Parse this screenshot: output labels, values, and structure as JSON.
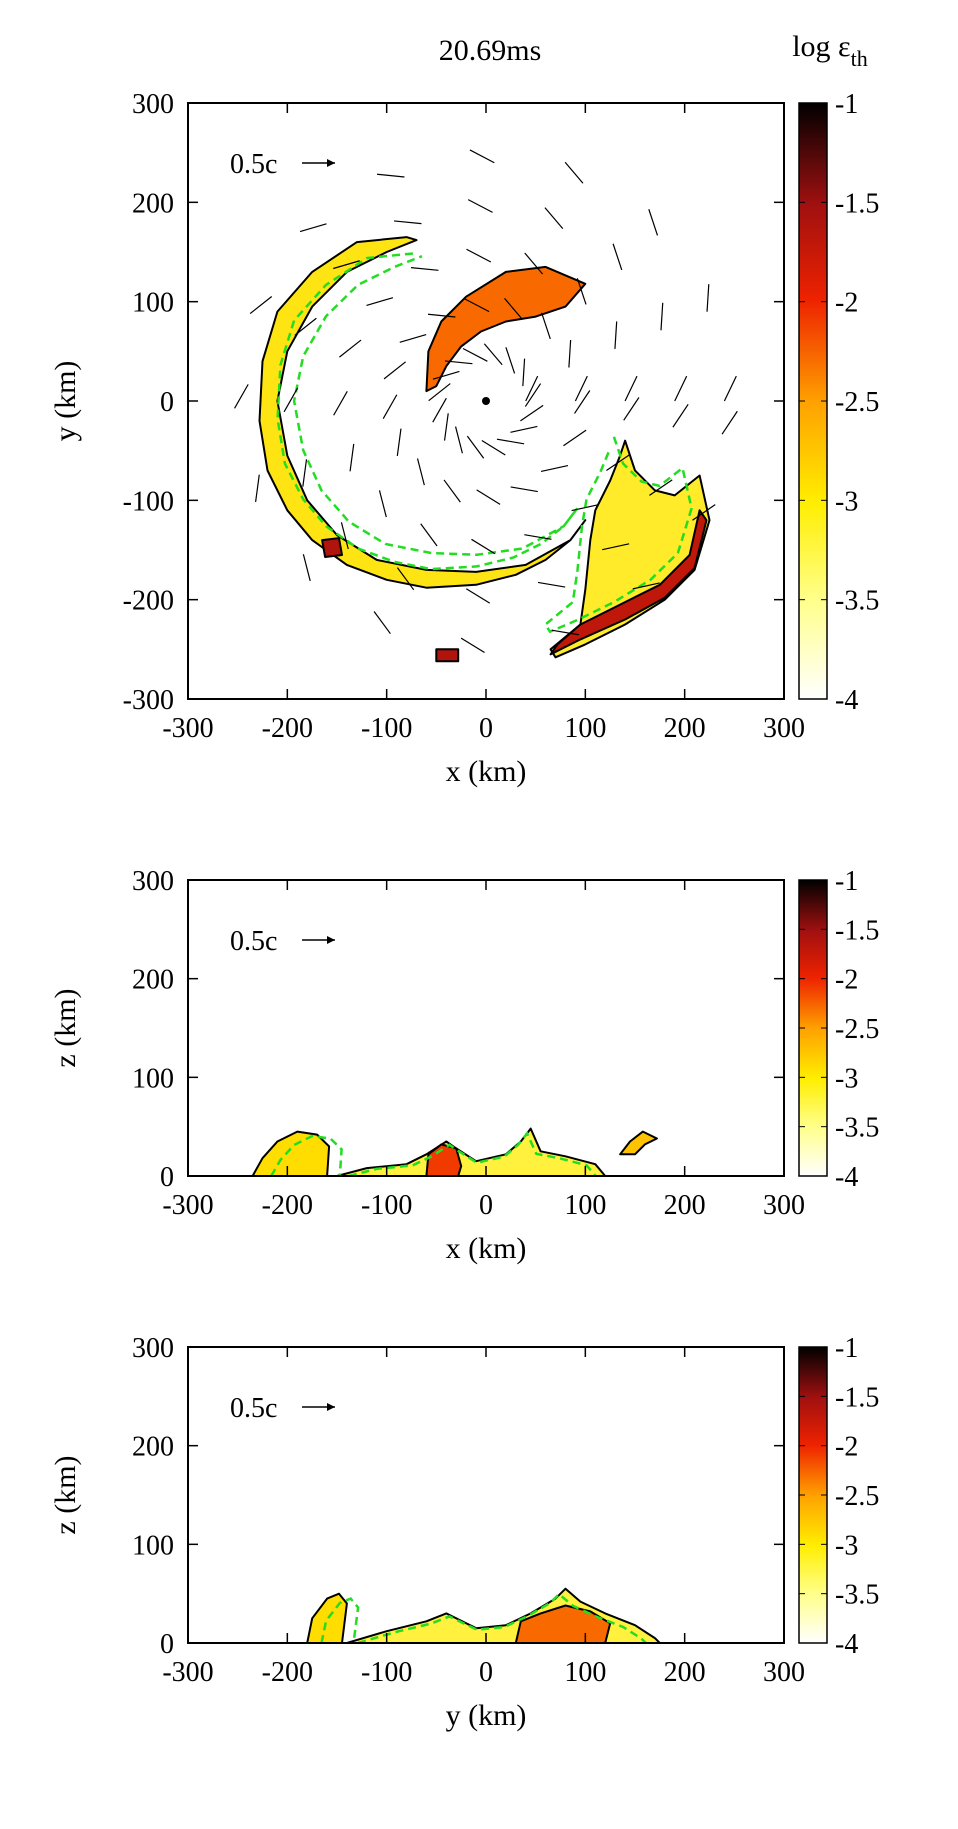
{
  "title": "20.69ms",
  "colorbar_label": "log ε",
  "colorbar_label_sub": "th",
  "colormap_stops": [
    "#ffffff",
    "#ffff66",
    "#ffdd00",
    "#ff9900",
    "#ee2200",
    "#a01010",
    "#000000"
  ],
  "contour_black": "#000000",
  "contour_green": "#22dd22",
  "chart_data": [
    {
      "type": "heatmap",
      "panel": "x-y plane",
      "xlabel": "x (km)",
      "ylabel": "y (km)",
      "xlim": [
        -300,
        300
      ],
      "ylim": [
        -300,
        300
      ],
      "xticks": [
        "-300",
        "-200",
        "-100",
        "0",
        "100",
        "200",
        "300"
      ],
      "yticks": [
        "-300",
        "-200",
        "-100",
        "0",
        "100",
        "200",
        "300"
      ],
      "velocity_scale_label": "0.5c",
      "colorbar_range": [
        -4,
        -1
      ],
      "colorbar_ticks": [
        "-1",
        "-1.5",
        "-2",
        "-2.5",
        "-3",
        "-3.5",
        "-4"
      ],
      "features": [
        {
          "name": "outer spiral arm",
          "polygon": [
            [
              -80,
              165
            ],
            [
              -130,
              160
            ],
            [
              -175,
              130
            ],
            [
              -210,
              90
            ],
            [
              -225,
              40
            ],
            [
              -228,
              -20
            ],
            [
              -220,
              -70
            ],
            [
              -200,
              -110
            ],
            [
              -175,
              -140
            ],
            [
              -140,
              -165
            ],
            [
              -100,
              -180
            ],
            [
              -60,
              -188
            ],
            [
              -10,
              -185
            ],
            [
              30,
              -175
            ],
            [
              60,
              -160
            ],
            [
              85,
              -140
            ],
            [
              100,
              -120
            ],
            [
              85,
              -140
            ],
            [
              40,
              -165
            ],
            [
              -10,
              -172
            ],
            [
              -60,
              -170
            ],
            [
              -110,
              -160
            ],
            [
              -150,
              -135
            ],
            [
              -180,
              -100
            ],
            [
              -200,
              -55
            ],
            [
              -210,
              0
            ],
            [
              -200,
              50
            ],
            [
              -175,
              95
            ],
            [
              -140,
              130
            ],
            [
              -100,
              150
            ],
            [
              -70,
              162
            ]
          ],
          "log_eps": -3.1
        },
        {
          "name": "tidal tail",
          "polygon": [
            [
              140,
              -40
            ],
            [
              150,
              -70
            ],
            [
              170,
              -90
            ],
            [
              190,
              -95
            ],
            [
              215,
              -75
            ],
            [
              225,
              -120
            ],
            [
              210,
              -170
            ],
            [
              180,
              -200
            ],
            [
              140,
              -225
            ],
            [
              100,
              -245
            ],
            [
              70,
              -258
            ],
            [
              65,
              -250
            ],
            [
              95,
              -225
            ],
            [
              100,
              -190
            ],
            [
              105,
              -140
            ],
            [
              110,
              -110
            ],
            [
              125,
              -80
            ],
            [
              135,
              -55
            ]
          ],
          "log_eps": -3.2
        },
        {
          "name": "hot shocked arc",
          "polygon": [
            [
              -60,
              10
            ],
            [
              -58,
              50
            ],
            [
              -45,
              80
            ],
            [
              -20,
              105
            ],
            [
              20,
              130
            ],
            [
              60,
              135
            ],
            [
              100,
              118
            ],
            [
              80,
              95
            ],
            [
              50,
              85
            ],
            [
              20,
              80
            ],
            [
              -5,
              70
            ],
            [
              -25,
              55
            ],
            [
              -40,
              35
            ],
            [
              -50,
              15
            ]
          ],
          "log_eps": -2.3
        },
        {
          "name": "tail dense edge",
          "polygon": [
            [
              65,
              -255
            ],
            [
              95,
              -240
            ],
            [
              140,
              -220
            ],
            [
              180,
              -198
            ],
            [
              210,
              -168
            ],
            [
              222,
              -120
            ],
            [
              215,
              -110
            ],
            [
              205,
              -155
            ],
            [
              175,
              -185
            ],
            [
              135,
              -205
            ],
            [
              95,
              -225
            ],
            [
              72,
              -245
            ]
          ],
          "log_eps": -1.7
        },
        {
          "name": "small clump",
          "polygon": [
            [
              -50,
              -250
            ],
            [
              -28,
              -250
            ],
            [
              -28,
              -262
            ],
            [
              -50,
              -262
            ]
          ],
          "log_eps": -1.6
        },
        {
          "name": "arm clump",
          "polygon": [
            [
              -165,
              -140
            ],
            [
              -148,
              -138
            ],
            [
              -145,
              -155
            ],
            [
              -162,
              -157
            ]
          ],
          "log_eps": -1.6
        }
      ]
    },
    {
      "type": "heatmap",
      "panel": "x-z plane",
      "xlabel": "x (km)",
      "ylabel": "z (km)",
      "xlim": [
        -300,
        300
      ],
      "ylim": [
        0,
        300
      ],
      "xticks": [
        "-300",
        "-200",
        "-100",
        "0",
        "100",
        "200",
        "300"
      ],
      "yticks": [
        "0",
        "100",
        "200",
        "300"
      ],
      "velocity_scale_label": "0.5c",
      "colorbar_range": [
        -4,
        -1
      ],
      "colorbar_ticks": [
        "-1",
        "-1.5",
        "-2",
        "-2.5",
        "-3",
        "-3.5",
        "-4"
      ],
      "features": [
        {
          "name": "left lobe",
          "polygon": [
            [
              -235,
              0
            ],
            [
              -225,
              18
            ],
            [
              -210,
              35
            ],
            [
              -190,
              45
            ],
            [
              -170,
              42
            ],
            [
              -158,
              30
            ],
            [
              -160,
              0
            ]
          ],
          "log_eps": -3.0
        },
        {
          "name": "central layer",
          "polygon": [
            [
              -150,
              0
            ],
            [
              -120,
              8
            ],
            [
              -80,
              12
            ],
            [
              -60,
              22
            ],
            [
              -40,
              35
            ],
            [
              -30,
              28
            ],
            [
              -10,
              15
            ],
            [
              20,
              22
            ],
            [
              35,
              35
            ],
            [
              45,
              48
            ],
            [
              55,
              25
            ],
            [
              80,
              20
            ],
            [
              110,
              12
            ],
            [
              120,
              0
            ]
          ],
          "log_eps": -3.3
        },
        {
          "name": "central hot spot",
          "polygon": [
            [
              -60,
              0
            ],
            [
              -58,
              22
            ],
            [
              -45,
              32
            ],
            [
              -30,
              28
            ],
            [
              -25,
              10
            ],
            [
              -28,
              0
            ]
          ],
          "log_eps": -2.1
        },
        {
          "name": "right lobe",
          "polygon": [
            [
              135,
              22
            ],
            [
              145,
              35
            ],
            [
              158,
              45
            ],
            [
              172,
              38
            ],
            [
              160,
              32
            ],
            [
              150,
              22
            ]
          ],
          "log_eps": -2.8
        }
      ]
    },
    {
      "type": "heatmap",
      "panel": "y-z plane",
      "xlabel": "y (km)",
      "ylabel": "z (km)",
      "xlim": [
        -300,
        300
      ],
      "ylim": [
        0,
        300
      ],
      "xticks": [
        "-300",
        "-200",
        "-100",
        "0",
        "100",
        "200",
        "300"
      ],
      "yticks": [
        "0",
        "100",
        "200",
        "300"
      ],
      "velocity_scale_label": "0.5c",
      "colorbar_range": [
        -4,
        -1
      ],
      "colorbar_ticks": [
        "-1",
        "-1.5",
        "-2",
        "-2.5",
        "-3",
        "-3.5",
        "-4"
      ],
      "features": [
        {
          "name": "left lobe",
          "polygon": [
            [
              -180,
              0
            ],
            [
              -175,
              25
            ],
            [
              -160,
              45
            ],
            [
              -148,
              50
            ],
            [
              -140,
              40
            ],
            [
              -145,
              0
            ]
          ],
          "log_eps": -3.0
        },
        {
          "name": "central layer",
          "polygon": [
            [
              -140,
              0
            ],
            [
              -100,
              12
            ],
            [
              -60,
              22
            ],
            [
              -40,
              30
            ],
            [
              -10,
              15
            ],
            [
              20,
              18
            ],
            [
              45,
              30
            ],
            [
              70,
              45
            ],
            [
              80,
              55
            ],
            [
              95,
              42
            ],
            [
              120,
              30
            ],
            [
              150,
              18
            ],
            [
              170,
              5
            ],
            [
              175,
              0
            ]
          ],
          "log_eps": -3.3
        },
        {
          "name": "central hot spots",
          "polygon": [
            [
              30,
              0
            ],
            [
              35,
              22
            ],
            [
              55,
              30
            ],
            [
              80,
              38
            ],
            [
              105,
              32
            ],
            [
              125,
              20
            ],
            [
              120,
              0
            ]
          ],
          "log_eps": -2.3
        }
      ]
    }
  ]
}
